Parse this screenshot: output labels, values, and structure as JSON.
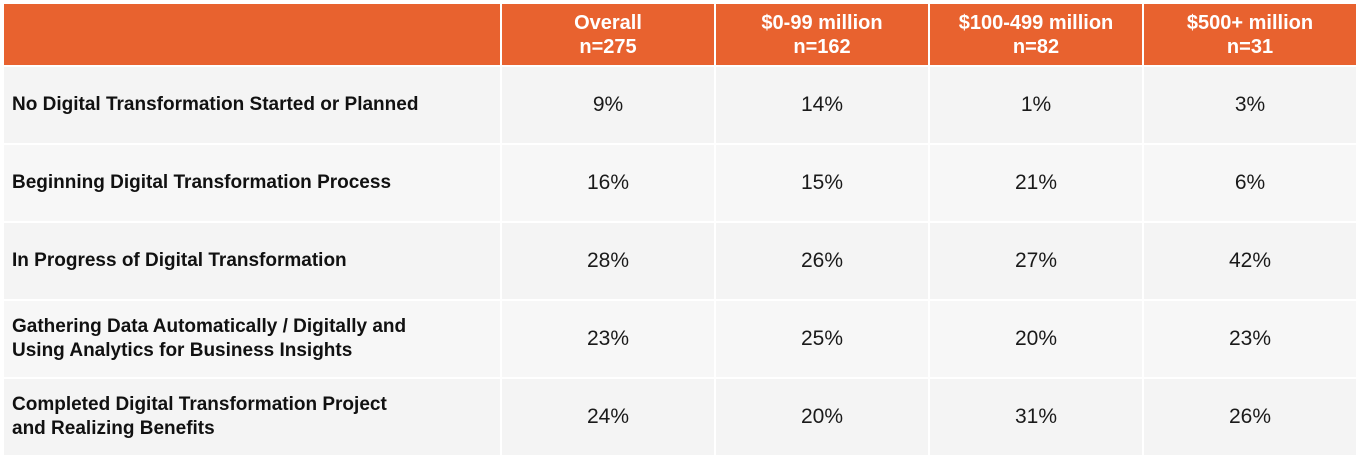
{
  "chart_data": {
    "type": "table",
    "columns": [
      {
        "label": "Overall",
        "n": "n=275"
      },
      {
        "label": "$0-99 million",
        "n": "n=162"
      },
      {
        "label": "$100-499 million",
        "n": "n=82"
      },
      {
        "label": "$500+ million",
        "n": "n=31"
      }
    ],
    "rows": [
      {
        "label_lines": [
          "No Digital Transformation Started or Planned"
        ],
        "values": [
          "9%",
          "14%",
          "1%",
          "3%"
        ]
      },
      {
        "label_lines": [
          "Beginning Digital Transformation Process"
        ],
        "values": [
          "16%",
          "15%",
          "21%",
          "6%"
        ]
      },
      {
        "label_lines": [
          "In Progress of Digital Transformation"
        ],
        "values": [
          "28%",
          "26%",
          "27%",
          "42%"
        ]
      },
      {
        "label_lines": [
          "Gathering Data Automatically / Digitally and",
          "Using Analytics for Business Insights"
        ],
        "values": [
          "23%",
          "25%",
          "20%",
          "23%"
        ]
      },
      {
        "label_lines": [
          "Completed Digital Transformation Project",
          "and Realizing Benefits"
        ],
        "values": [
          "24%",
          "20%",
          "31%",
          "26%"
        ]
      }
    ]
  },
  "colors": {
    "header_bg": "#e8622f",
    "header_text": "#ffffff",
    "row_bg_a": "#f4f4f4",
    "row_bg_b": "#f7f7f7"
  }
}
